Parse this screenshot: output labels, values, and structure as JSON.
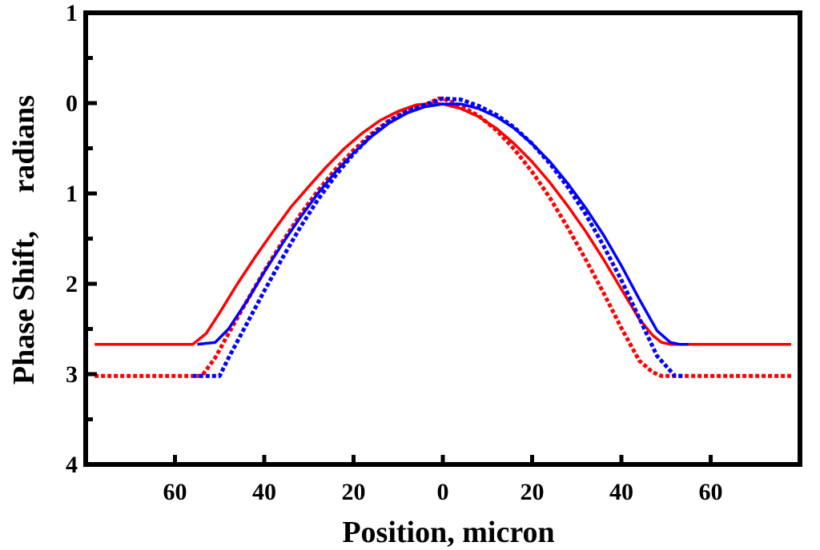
{
  "chart_data": {
    "type": "line",
    "title": "",
    "xlabel": "Position, micron",
    "ylabel": "Phase Shift,     radians",
    "xlim": [
      -80,
      80
    ],
    "ylim": [
      4,
      1
    ],
    "x_ticks": [
      -60,
      -40,
      -20,
      0,
      20,
      40,
      60
    ],
    "x_tick_labels": [
      "60",
      "40",
      "20",
      "0",
      "20",
      "40",
      "60"
    ],
    "y_ticks": [
      1,
      0,
      -1,
      -2,
      -3,
      -4
    ],
    "y_tick_labels": [
      "1",
      "0",
      "1",
      "2",
      "3",
      "4"
    ],
    "grid": false,
    "series": [
      {
        "name": "red-solid",
        "color": "#ff0000",
        "dash": "solid",
        "x": [
          -78,
          -56,
          -53,
          -50,
          -46,
          -42,
          -38,
          -34,
          -30,
          -26,
          -22,
          -18,
          -14,
          -10,
          -6,
          -2,
          0,
          4,
          8,
          12,
          16,
          20,
          24,
          28,
          32,
          36,
          40,
          44,
          47,
          49,
          51,
          54,
          78
        ],
        "y": [
          -2.67,
          -2.67,
          -2.55,
          -2.32,
          -2.0,
          -1.7,
          -1.42,
          -1.15,
          -0.92,
          -0.7,
          -0.5,
          -0.33,
          -0.19,
          -0.09,
          -0.02,
          0.0,
          -0.01,
          -0.06,
          -0.15,
          -0.28,
          -0.45,
          -0.65,
          -0.88,
          -1.14,
          -1.42,
          -1.73,
          -2.06,
          -2.39,
          -2.57,
          -2.65,
          -2.67,
          -2.67,
          -2.67
        ]
      },
      {
        "name": "red-dotted",
        "color": "#ff0000",
        "dash": "dotted",
        "x": [
          -78,
          -54,
          -51,
          -48,
          -44,
          -40,
          -36,
          -32,
          -28,
          -24,
          -20,
          -16,
          -12,
          -8,
          -4,
          -1,
          0,
          4,
          8,
          12,
          16,
          20,
          24,
          28,
          32,
          36,
          40,
          44,
          47,
          49,
          51,
          78
        ],
        "y": [
          -3.02,
          -3.02,
          -2.82,
          -2.55,
          -2.2,
          -1.86,
          -1.54,
          -1.24,
          -0.97,
          -0.73,
          -0.52,
          -0.34,
          -0.19,
          -0.08,
          -0.02,
          0.05,
          0.05,
          -0.03,
          -0.14,
          -0.3,
          -0.51,
          -0.76,
          -1.05,
          -1.38,
          -1.73,
          -2.1,
          -2.49,
          -2.85,
          -2.98,
          -3.02,
          -3.02,
          -3.02
        ]
      },
      {
        "name": "blue-solid",
        "color": "#0000ff",
        "dash": "solid",
        "x": [
          -55,
          -51,
          -48,
          -44,
          -40,
          -36,
          -32,
          -28,
          -24,
          -20,
          -16,
          -12,
          -8,
          -4,
          0,
          4,
          8,
          12,
          16,
          20,
          24,
          28,
          32,
          36,
          40,
          44,
          48,
          51,
          53,
          55
        ],
        "y": [
          -2.67,
          -2.65,
          -2.5,
          -2.2,
          -1.87,
          -1.56,
          -1.27,
          -1.0,
          -0.76,
          -0.55,
          -0.37,
          -0.22,
          -0.11,
          -0.04,
          -0.01,
          -0.01,
          -0.06,
          -0.15,
          -0.28,
          -0.45,
          -0.65,
          -0.89,
          -1.16,
          -1.46,
          -1.8,
          -2.17,
          -2.52,
          -2.65,
          -2.67,
          -2.67
        ]
      },
      {
        "name": "blue-dotted",
        "color": "#0000ff",
        "dash": "dotted",
        "x": [
          -56,
          -50,
          -48,
          -44,
          -40,
          -36,
          -32,
          -28,
          -24,
          -20,
          -16,
          -12,
          -8,
          -4,
          0,
          4,
          8,
          12,
          16,
          20,
          24,
          28,
          32,
          36,
          40,
          44,
          48,
          52,
          54
        ],
        "y": [
          -3.02,
          -3.02,
          -2.82,
          -2.45,
          -2.08,
          -1.72,
          -1.38,
          -1.07,
          -0.8,
          -0.56,
          -0.36,
          -0.2,
          -0.09,
          -0.02,
          0.05,
          0.04,
          -0.03,
          -0.13,
          -0.27,
          -0.45,
          -0.67,
          -0.93,
          -1.23,
          -1.58,
          -1.96,
          -2.38,
          -2.8,
          -3.02,
          -3.02
        ]
      }
    ]
  }
}
